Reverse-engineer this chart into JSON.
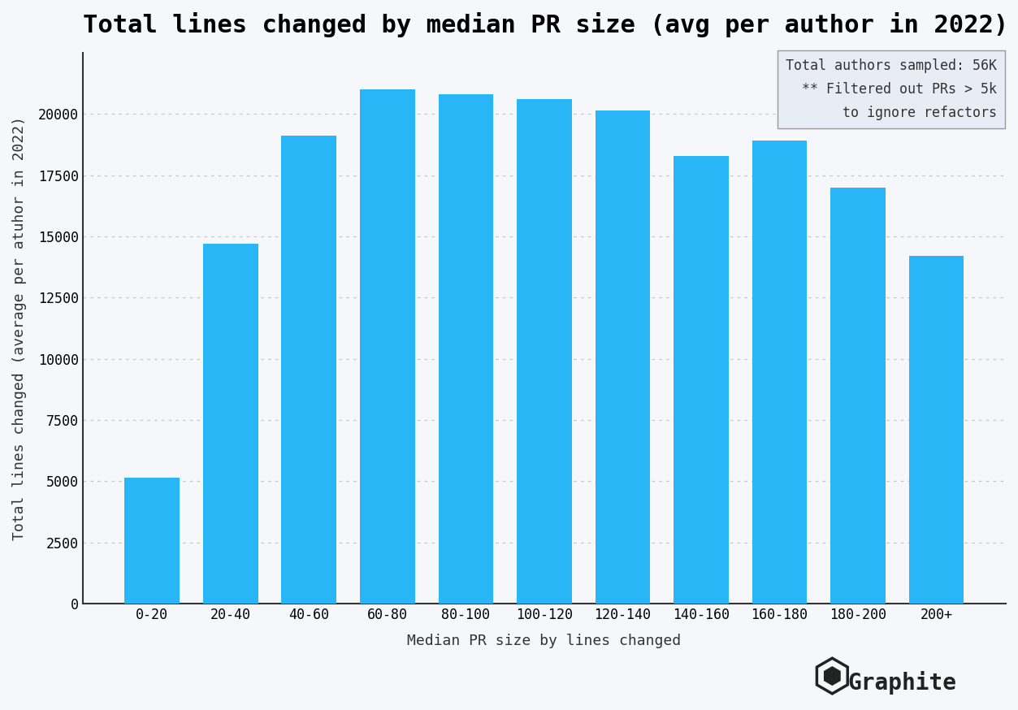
{
  "title": "Total lines changed by median PR size (avg per author in 2022)",
  "xlabel": "Median PR size by lines changed",
  "ylabel": "Total lines changed (average per atuhor in 2022)",
  "categories": [
    "0-20",
    "20-40",
    "40-60",
    "60-80",
    "80-100",
    "100-120",
    "120-140",
    "140-160",
    "160-180",
    "180-200",
    "200+"
  ],
  "values": [
    5150,
    14700,
    19100,
    21000,
    20800,
    20600,
    20150,
    18300,
    18900,
    17000,
    14200
  ],
  "bar_color": "#29b6f6",
  "background_color": "#f5f7fa",
  "annotation_box_color": "#e8edf5",
  "annotation_lines": [
    "Total authors sampled: 56K",
    "** Filtered out PRs > 5k",
    "to ignore refactors"
  ],
  "grid_color": "#aaaaaa",
  "yticks": [
    0,
    2500,
    5000,
    7500,
    10000,
    12500,
    15000,
    17500,
    20000
  ],
  "ylim": [
    0,
    22500
  ],
  "title_fontsize": 22,
  "axis_label_fontsize": 13,
  "tick_fontsize": 12,
  "annotation_fontsize": 12,
  "logo_text": "Graphite",
  "bar_width": 0.7
}
